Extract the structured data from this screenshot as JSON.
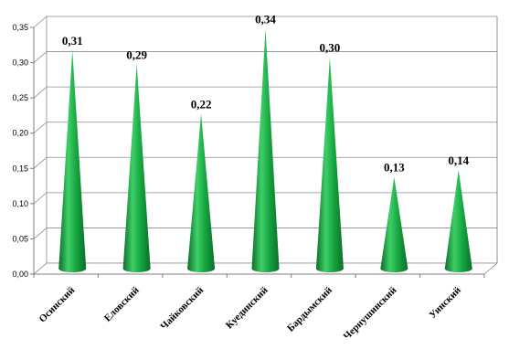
{
  "chart_data": {
    "type": "bar",
    "shape": "cone",
    "categories": [
      "Осинский",
      "Еловский",
      "Чайковский",
      "Куединский",
      "Бардымский",
      "Чернушинский",
      "Уинский"
    ],
    "values": [
      0.31,
      0.29,
      0.22,
      0.34,
      0.3,
      0.13,
      0.14
    ],
    "data_labels": [
      "0,31",
      "0,29",
      "0,22",
      "0,34",
      "0,30",
      "0,13",
      "0,14"
    ],
    "y_ticks": [
      "0,00",
      "0,05",
      "0,10",
      "0,15",
      "0,20",
      "0,25",
      "0,30",
      "0,35"
    ],
    "ylim": [
      0,
      0.35
    ],
    "grid": true,
    "legend": "none",
    "title": "",
    "xlabel": "",
    "ylabel": "",
    "colors": {
      "cone_light": "#3ecf68",
      "cone_main": "#16a440",
      "cone_dark": "#0a6e28",
      "grid": "#8c8c8c",
      "axis": "#7f7f7f"
    }
  }
}
